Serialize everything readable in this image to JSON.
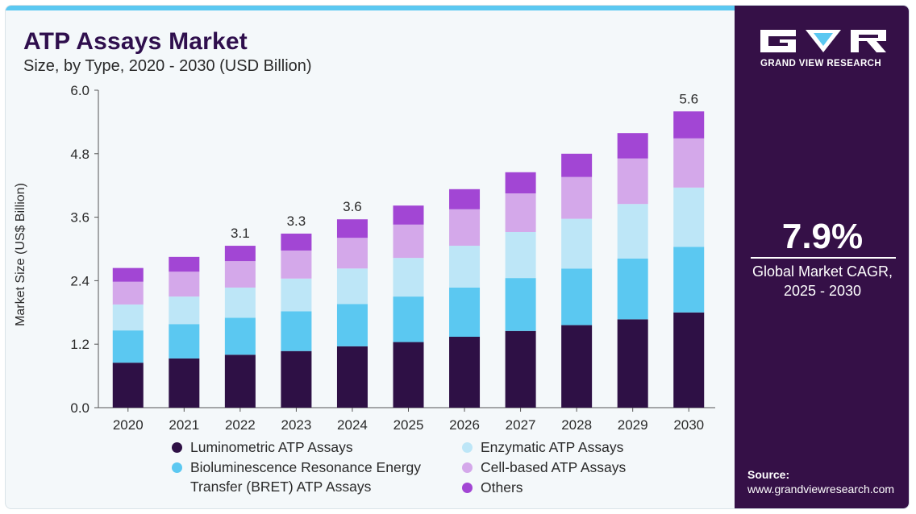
{
  "header": {
    "title": "ATP Assays Market",
    "subtitle": "Size, by Type, 2020 - 2030 (USD Billion)"
  },
  "colors": {
    "accent_bar": "#5bc8f1",
    "panel_bg": "#351047",
    "title": "#2f0f4d"
  },
  "chart_data": {
    "type": "bar",
    "stacked": true,
    "title": "ATP Assays Market",
    "subtitle": "Size, by Type, 2020 - 2030 (USD Billion)",
    "xlabel": "",
    "ylabel": "Market Size (US$ Billion)",
    "ylim": [
      0,
      6.0
    ],
    "yticks": [
      "0.0",
      "1.2",
      "2.4",
      "3.6",
      "4.8",
      "6.0"
    ],
    "grid": false,
    "legend_position": "bottom",
    "categories": [
      "2020",
      "2021",
      "2022",
      "2023",
      "2024",
      "2025",
      "2026",
      "2027",
      "2028",
      "2029",
      "2030"
    ],
    "series": [
      {
        "name": "Luminometric ATP Assays",
        "color": "#2e1045",
        "values": [
          0.85,
          0.93,
          1.0,
          1.07,
          1.16,
          1.24,
          1.34,
          1.45,
          1.56,
          1.67,
          1.8
        ]
      },
      {
        "name": "Bioluminescence Resonance Energy Transfer (BRET) ATP Assays",
        "color": "#5bc8f1",
        "values": [
          0.61,
          0.65,
          0.7,
          0.75,
          0.8,
          0.86,
          0.93,
          1.0,
          1.07,
          1.15,
          1.24
        ]
      },
      {
        "name": "Enzymatic ATP Assays",
        "color": "#bde6f7",
        "values": [
          0.49,
          0.52,
          0.57,
          0.62,
          0.67,
          0.73,
          0.79,
          0.87,
          0.94,
          1.03,
          1.12
        ]
      },
      {
        "name": "Cell-based ATP Assays",
        "color": "#d4a8ea",
        "values": [
          0.43,
          0.47,
          0.5,
          0.53,
          0.58,
          0.63,
          0.69,
          0.73,
          0.79,
          0.86,
          0.93
        ]
      },
      {
        "name": "Others",
        "color": "#a246d4",
        "values": [
          0.26,
          0.28,
          0.29,
          0.32,
          0.35,
          0.36,
          0.38,
          0.4,
          0.44,
          0.48,
          0.51
        ]
      }
    ],
    "data_labels": [
      {
        "category": "2022",
        "text": "3.1"
      },
      {
        "category": "2023",
        "text": "3.3"
      },
      {
        "category": "2024",
        "text": "3.6"
      },
      {
        "category": "2030",
        "text": "5.6"
      }
    ]
  },
  "side_panel": {
    "brand": "GRAND VIEW RESEARCH",
    "cagr_value": "7.9%",
    "cagr_label": "Global Market CAGR, 2025 - 2030",
    "source_title": "Source:",
    "source_url": "www.grandviewresearch.com"
  }
}
